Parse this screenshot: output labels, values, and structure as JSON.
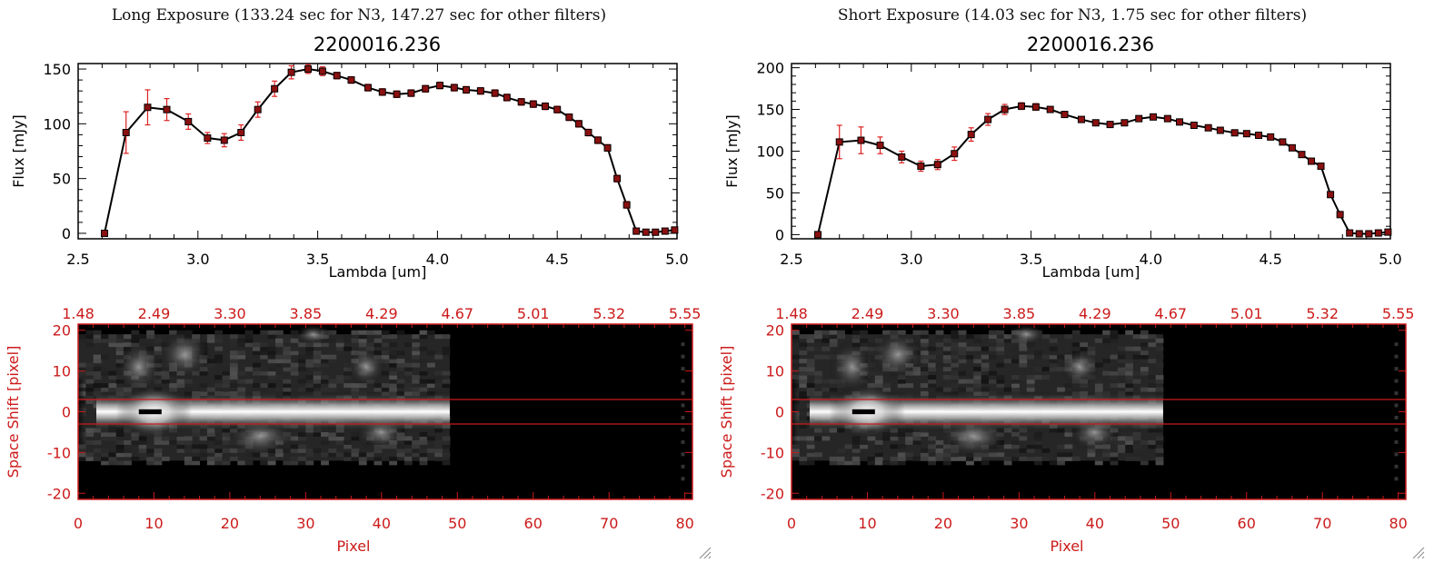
{
  "panels": [
    {
      "caption": "Long Exposure (133.24 sec for N3, 147.27 sec for other filters)",
      "title": "2200016.236",
      "xlabel": "Lambda [um]",
      "ylabel": "Flux [mJy]",
      "ylim": [
        -5,
        155
      ],
      "yticks": [
        "0",
        "50",
        "100",
        "150"
      ],
      "yticks_v": [
        0,
        50,
        100,
        150
      ],
      "xticks": [
        "2.5",
        "3.0",
        "3.5",
        "4.0",
        "4.5",
        "5.0"
      ],
      "image_top_ticks": [
        "1.48",
        "2.49",
        "3.30",
        "3.85",
        "4.29",
        "4.67",
        "5.01",
        "5.32",
        "5.55"
      ],
      "image_ylabel": "Space Shift [pixel]",
      "image_yticks": [
        "20",
        "10",
        "0",
        "-10",
        "-20"
      ],
      "image_xticks": [
        "0",
        "10",
        "20",
        "30",
        "40",
        "50",
        "60",
        "70",
        "80"
      ],
      "image_xlabel": "Pixel"
    },
    {
      "caption": "Short Exposure (14.03 sec for N3, 1.75 sec for other filters)",
      "title": "2200016.236",
      "xlabel": "Lambda [um]",
      "ylabel": "Flux [mJy]",
      "ylim": [
        -5,
        205
      ],
      "yticks": [
        "0",
        "50",
        "100",
        "150",
        "200"
      ],
      "yticks_v": [
        0,
        50,
        100,
        150,
        200
      ],
      "xticks": [
        "2.5",
        "3.0",
        "3.5",
        "4.0",
        "4.5",
        "5.0"
      ],
      "image_top_ticks": [
        "1.48",
        "2.49",
        "3.30",
        "3.85",
        "4.29",
        "4.67",
        "5.01",
        "5.32",
        "5.55"
      ],
      "image_ylabel": "Space Shift [pixel]",
      "image_yticks": [
        "20",
        "10",
        "0",
        "-10",
        "-20"
      ],
      "image_xticks": [
        "0",
        "10",
        "20",
        "30",
        "40",
        "50",
        "60",
        "70",
        "80"
      ],
      "image_xlabel": "Pixel"
    }
  ],
  "colors": {
    "axis_red": "#cc1a1a",
    "errbar": "#dd2222",
    "marker": "#8b1010",
    "line": "#000000"
  },
  "chart_data": [
    {
      "type": "line",
      "title": "2200016.236",
      "xlabel": "Lambda [um]",
      "ylabel": "Flux [mJy]",
      "xlim": [
        2.5,
        5.0
      ],
      "ylim": [
        -5,
        155
      ],
      "x": [
        2.61,
        2.7,
        2.79,
        2.87,
        2.96,
        3.04,
        3.11,
        3.18,
        3.25,
        3.32,
        3.39,
        3.46,
        3.52,
        3.58,
        3.64,
        3.71,
        3.77,
        3.83,
        3.89,
        3.95,
        4.01,
        4.07,
        4.12,
        4.18,
        4.24,
        4.29,
        4.35,
        4.4,
        4.45,
        4.5,
        4.55,
        4.59,
        4.63,
        4.67,
        4.71,
        4.75,
        4.79,
        4.83,
        4.87,
        4.91,
        4.95,
        4.99
      ],
      "y": [
        0,
        92,
        115,
        113,
        102,
        87,
        85,
        92,
        113,
        132,
        147,
        150,
        148,
        144,
        140,
        133,
        129,
        127,
        128,
        132,
        135,
        133,
        131,
        130,
        128,
        124,
        120,
        118,
        116,
        113,
        106,
        100,
        92,
        85,
        78,
        50,
        26,
        2,
        1,
        1,
        2,
        3
      ],
      "yerr": [
        0,
        19,
        16,
        10,
        7,
        5,
        6,
        7,
        7,
        7,
        6,
        4,
        4,
        3,
        3,
        3,
        3,
        3,
        3,
        3,
        3,
        3,
        3,
        3,
        3,
        3,
        3,
        3,
        3,
        3,
        3,
        3,
        3,
        3,
        3,
        3,
        3,
        1,
        1,
        1,
        1,
        1
      ]
    },
    {
      "type": "line",
      "title": "2200016.236",
      "xlabel": "Lambda [um]",
      "ylabel": "Flux [mJy]",
      "xlim": [
        2.5,
        5.0
      ],
      "ylim": [
        -5,
        205
      ],
      "x": [
        2.61,
        2.7,
        2.79,
        2.87,
        2.96,
        3.04,
        3.11,
        3.18,
        3.25,
        3.32,
        3.39,
        3.46,
        3.52,
        3.58,
        3.64,
        3.71,
        3.77,
        3.83,
        3.89,
        3.95,
        4.01,
        4.07,
        4.12,
        4.18,
        4.24,
        4.29,
        4.35,
        4.4,
        4.45,
        4.5,
        4.55,
        4.59,
        4.63,
        4.67,
        4.71,
        4.75,
        4.79,
        4.83,
        4.87,
        4.91,
        4.95,
        4.99
      ],
      "y": [
        0,
        111,
        113,
        107,
        93,
        82,
        84,
        97,
        120,
        138,
        150,
        154,
        153,
        150,
        144,
        138,
        134,
        132,
        134,
        139,
        141,
        139,
        135,
        131,
        128,
        125,
        122,
        121,
        119,
        117,
        111,
        104,
        96,
        88,
        82,
        48,
        24,
        2,
        1,
        1,
        2,
        3
      ],
      "yerr": [
        0,
        20,
        16,
        10,
        7,
        6,
        6,
        8,
        8,
        7,
        6,
        4,
        4,
        3,
        3,
        3,
        3,
        3,
        3,
        3,
        3,
        3,
        3,
        3,
        3,
        3,
        3,
        3,
        3,
        3,
        3,
        3,
        3,
        3,
        3,
        3,
        3,
        1,
        1,
        1,
        1,
        1
      ]
    }
  ]
}
